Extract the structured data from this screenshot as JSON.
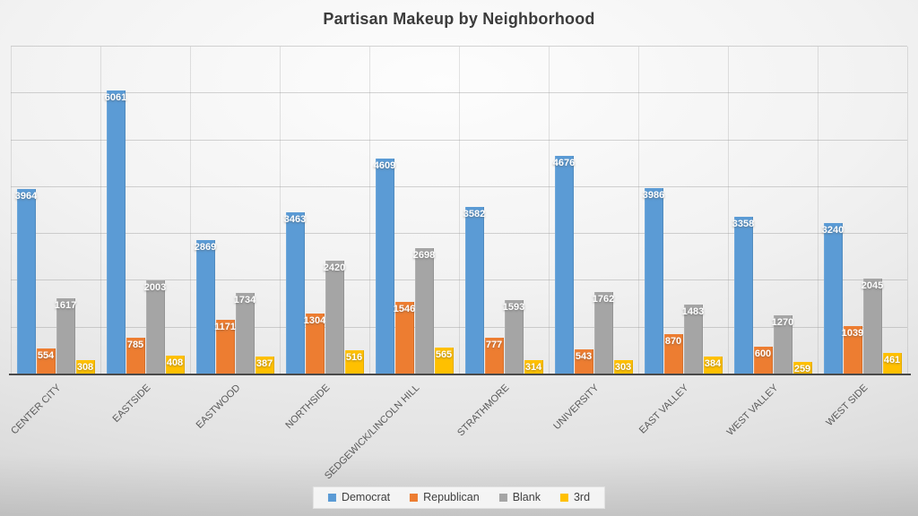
{
  "title": "Partisan Makeup by Neighborhood",
  "legend": {
    "position": "bottom",
    "items": [
      {
        "label": "Democrat",
        "color": "#5B9BD5",
        "swatch": "square-icon"
      },
      {
        "label": "Republican",
        "color": "#ED7D31",
        "swatch": "square-icon"
      },
      {
        "label": "Blank",
        "color": "#A5A5A5",
        "swatch": "square-icon"
      },
      {
        "label": "3rd",
        "color": "#FFC000",
        "swatch": "square-icon"
      }
    ]
  },
  "chart_data": {
    "type": "bar",
    "title": "Partisan Makeup by Neighborhood",
    "categories": [
      "CENTER CITY",
      "EASTSIDE",
      "EASTWOOD",
      "NORTHSIDE",
      "SEDGEWICK/LINCOLN HILL",
      "STRATHMORE",
      "UNIVERSITY",
      "EAST VALLEY",
      "WEST VALLEY",
      "WEST SIDE"
    ],
    "series": [
      {
        "name": "Democrat",
        "color": "#5B9BD5",
        "values": [
          3964,
          6061,
          2869,
          3463,
          4609,
          3582,
          4676,
          3986,
          3358,
          3240
        ]
      },
      {
        "name": "Republican",
        "color": "#ED7D31",
        "values": [
          554,
          785,
          1171,
          1304,
          1546,
          777,
          543,
          870,
          600,
          1039
        ]
      },
      {
        "name": "Blank",
        "color": "#A5A5A5",
        "values": [
          1617,
          2003,
          1734,
          2420,
          2698,
          1593,
          1762,
          1483,
          1270,
          2045
        ]
      },
      {
        "name": "3rd",
        "color": "#FFC000",
        "values": [
          308,
          408,
          387,
          516,
          565,
          314,
          303,
          384,
          259,
          461
        ]
      }
    ],
    "xlabel": "",
    "ylabel": "",
    "ylim": [
      0,
      7000
    ],
    "gridline_step": 1000,
    "grid": true,
    "y_axis_tick_labels_visible": false,
    "data_labels": "inside-end",
    "data_label_color": "#FFFFFF",
    "legend_position": "bottom",
    "category_label_rotation_deg": -45,
    "axis_color": "#4A4A4A",
    "background": "gradient-gray"
  }
}
